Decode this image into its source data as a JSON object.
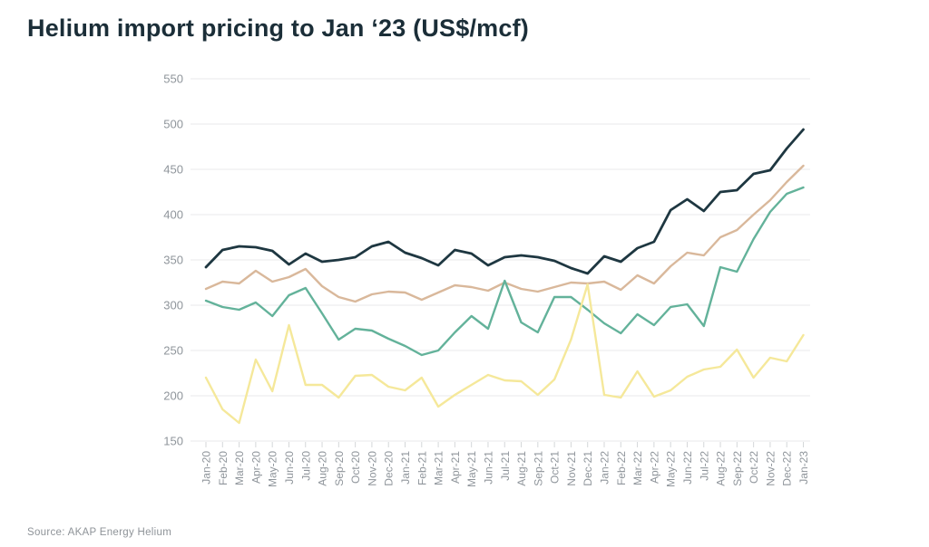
{
  "page": {
    "title": "Helium import pricing to Jan ‘23 (US$/mcf)",
    "source_note": "Source: AKAP Energy Helium"
  },
  "style": {
    "title_color": "#1b2e38",
    "axis_text_color": "#8f959b",
    "gridline_color": "#e9eaeb",
    "tick_color": "#d4d7d9"
  },
  "chart_data": {
    "type": "line",
    "title": "Helium import pricing to Jan ‘23 (US$/mcf)",
    "unit": "US$/mcf",
    "ylim": [
      150,
      550
    ],
    "yticks": [
      150,
      200,
      250,
      300,
      350,
      400,
      450,
      500,
      550
    ],
    "grid": "horizontal",
    "legend": "none",
    "categories": [
      "Jan-20",
      "Feb-20",
      "Mar-20",
      "Apr-20",
      "May-20",
      "Jun-20",
      "Jul-20",
      "Aug-20",
      "Sep-20",
      "Oct-20",
      "Nov-20",
      "Dec-20",
      "Jan-21",
      "Feb-21",
      "Mar-21",
      "Apr-21",
      "May-21",
      "Jun-21",
      "Jul-21",
      "Aug-21",
      "Sep-21",
      "Oct-21",
      "Nov-21",
      "Dec-21",
      "Jan-22",
      "Feb-22",
      "Mar-22",
      "Apr-22",
      "May-22",
      "Jun-22",
      "Jul-22",
      "Aug-22",
      "Sep-22",
      "Oct-22",
      "Nov-22",
      "Dec-22",
      "Jan-23"
    ],
    "series": [
      {
        "name": "dark-navy-line",
        "color": "#1e3741",
        "values": [
          342,
          361,
          365,
          364,
          360,
          345,
          357,
          348,
          350,
          353,
          365,
          370,
          358,
          352,
          344,
          361,
          357,
          344,
          353,
          355,
          353,
          349,
          341,
          335,
          354,
          348,
          363,
          370,
          405,
          417,
          404,
          425,
          427,
          445,
          449,
          473,
          494
        ]
      },
      {
        "name": "tan-line",
        "color": "#d9b89b",
        "values": [
          318,
          326,
          324,
          338,
          326,
          331,
          340,
          321,
          309,
          304,
          312,
          315,
          314,
          306,
          314,
          322,
          320,
          316,
          325,
          318,
          315,
          320,
          325,
          324,
          326,
          317,
          333,
          324,
          343,
          358,
          355,
          375,
          383,
          400,
          416,
          436,
          454
        ]
      },
      {
        "name": "teal-line",
        "color": "#63b29a",
        "values": [
          305,
          298,
          295,
          303,
          288,
          311,
          319,
          291,
          262,
          274,
          272,
          263,
          255,
          245,
          250,
          270,
          288,
          274,
          327,
          281,
          270,
          309,
          309,
          295,
          280,
          269,
          290,
          278,
          298,
          301,
          277,
          342,
          337,
          373,
          403,
          423,
          430
        ]
      },
      {
        "name": "yellow-line",
        "color": "#f5e89a",
        "values": [
          220,
          185,
          170,
          240,
          205,
          278,
          212,
          212,
          198,
          222,
          223,
          210,
          206,
          220,
          188,
          201,
          212,
          223,
          217,
          216,
          201,
          218,
          262,
          323,
          201,
          198,
          227,
          199,
          206,
          221,
          229,
          232,
          251,
          220,
          242,
          238,
          267
        ]
      }
    ]
  }
}
